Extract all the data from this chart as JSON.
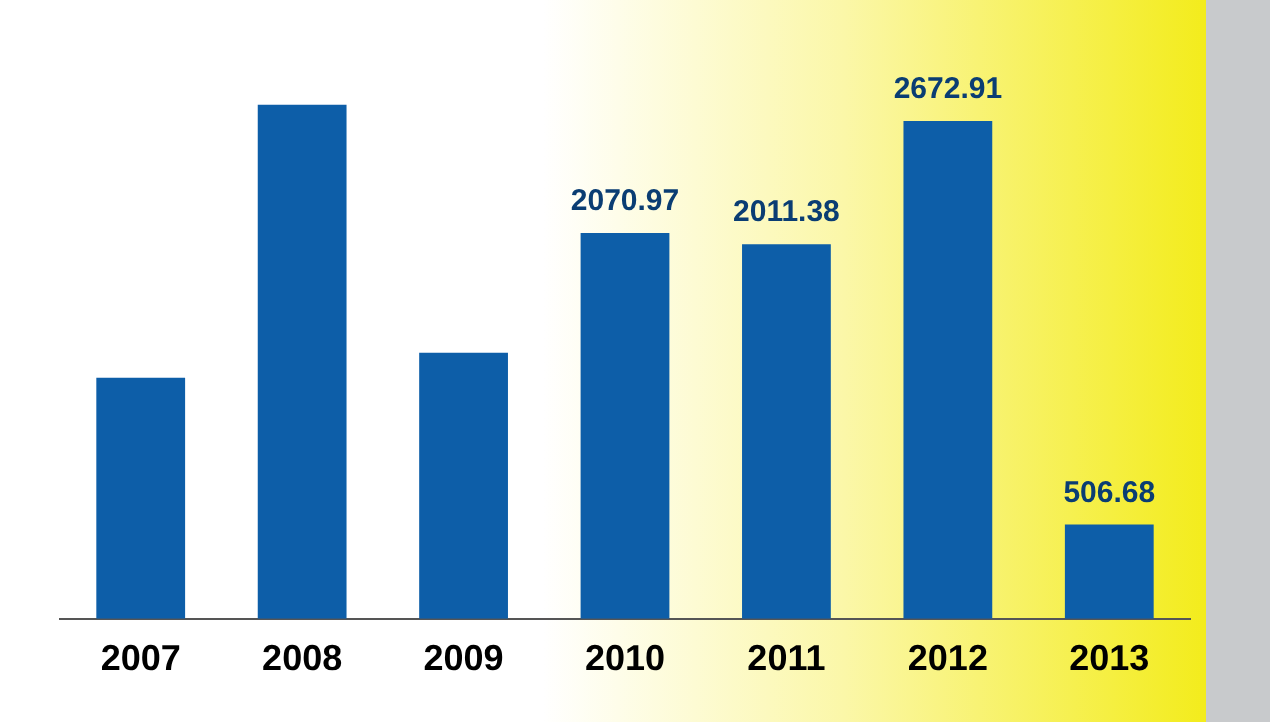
{
  "chart_data": {
    "type": "bar",
    "categories": [
      "2007",
      "2008",
      "2009",
      "2010",
      "2011",
      "2012",
      "2013"
    ],
    "values": [
      1294,
      2760,
      1429,
      2070.97,
      2011.38,
      2672.91,
      506.68
    ],
    "value_labels": [
      null,
      null,
      null,
      "2070.97",
      "2011.38",
      "2672.91",
      "506.68"
    ],
    "color": "#0d5ea8",
    "grid": false,
    "legend": false
  }
}
